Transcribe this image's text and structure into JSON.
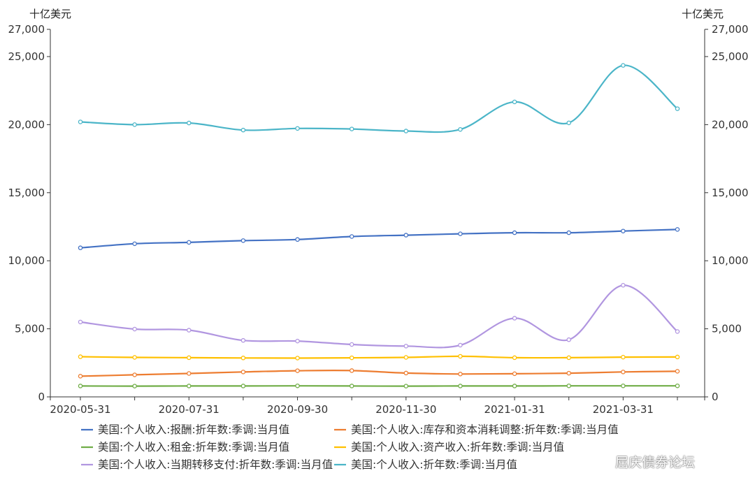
{
  "chart_data": {
    "type": "line",
    "y_unit_left": "十亿美元",
    "y_unit_right": "十亿美元",
    "ylim": [
      0,
      27000
    ],
    "yticks": [
      "0",
      "5,000",
      "10,000",
      "15,000",
      "20,000",
      "25,000",
      "27,000"
    ],
    "x_tick_labels": [
      "2020-05-31",
      "2020-07-31",
      "2020-09-30",
      "2020-11-30",
      "2021-01-31",
      "2021-03-31"
    ],
    "x": [
      "2020-05-31",
      "2020-06-30",
      "2020-07-31",
      "2020-08-31",
      "2020-09-30",
      "2020-10-31",
      "2020-11-30",
      "2020-12-31",
      "2021-01-31",
      "2021-02-28",
      "2021-03-31",
      "2021-04-30"
    ],
    "grid": false,
    "legend_position": "bottom",
    "series": [
      {
        "name": "美国:个人收入:报酬:折年数:季调:当月值",
        "color": "#4472c4",
        "values": [
          10950,
          11250,
          11350,
          11480,
          11560,
          11780,
          11880,
          11980,
          12060,
          12060,
          12180,
          12300
        ]
      },
      {
        "name": "美国:个人收入:库存和资本消耗调整:折年数:季调:当月值",
        "color": "#ed7d31",
        "values": [
          1520,
          1620,
          1720,
          1830,
          1920,
          1930,
          1750,
          1680,
          1700,
          1740,
          1830,
          1880
        ]
      },
      {
        "name": "美国:个人收入:租金:折年数:季调:当月值",
        "color": "#70ad47",
        "values": [
          800,
          790,
          800,
          800,
          810,
          800,
          790,
          800,
          800,
          810,
          810,
          810
        ]
      },
      {
        "name": "美国:个人收入:资产收入:折年数:季调:当月值",
        "color": "#ffc000",
        "values": [
          2950,
          2900,
          2880,
          2860,
          2850,
          2870,
          2900,
          2980,
          2880,
          2880,
          2920,
          2930
        ]
      },
      {
        "name": "美国:个人收入:当期转移支付:折年数:季调:当月值",
        "color": "#b196e0",
        "values": [
          5500,
          4980,
          4900,
          4150,
          4100,
          3850,
          3730,
          3800,
          5780,
          4200,
          8200,
          4800
        ]
      },
      {
        "name": "美国:个人收入:折年数:季调:当月值",
        "color": "#4bb5c8",
        "values": [
          20200,
          20000,
          20120,
          19600,
          19720,
          19680,
          19530,
          19650,
          21670,
          20130,
          24350,
          21170
        ]
      }
    ]
  },
  "watermark": {
    "text": "屈庆债券论坛",
    "icon": "wechat-icon"
  }
}
